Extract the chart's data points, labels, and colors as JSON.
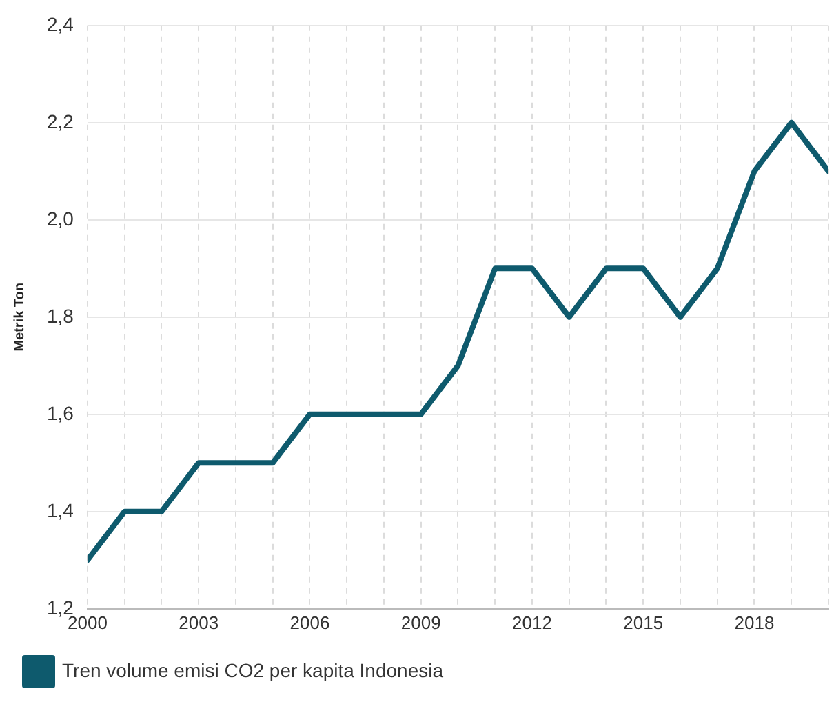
{
  "chart_data": {
    "type": "line",
    "ylabel": "Metrik Ton",
    "x": [
      2000,
      2001,
      2002,
      2003,
      2004,
      2005,
      2006,
      2007,
      2008,
      2009,
      2010,
      2011,
      2012,
      2013,
      2014,
      2015,
      2016,
      2017,
      2018,
      2019,
      2020
    ],
    "series": [
      {
        "name": "Tren volume emisi CO2 per kapita Indonesia",
        "color": "#0e5a6d",
        "values": [
          1.3,
          1.4,
          1.4,
          1.5,
          1.5,
          1.5,
          1.6,
          1.6,
          1.6,
          1.6,
          1.7,
          1.9,
          1.9,
          1.8,
          1.9,
          1.9,
          1.8,
          1.9,
          2.1,
          2.2,
          2.1
        ]
      }
    ],
    "xlim": [
      2000,
      2020
    ],
    "xticks": [
      2000,
      {
        "value": 2001,
        "label": null
      },
      {
        "value": 2002,
        "label": null
      },
      2003,
      {
        "value": 2004,
        "label": null
      },
      {
        "value": 2005,
        "label": null
      },
      2006,
      {
        "value": 2007,
        "label": null
      },
      {
        "value": 2008,
        "label": null
      },
      2009,
      {
        "value": 2010,
        "label": null
      },
      {
        "value": 2011,
        "label": null
      },
      2012,
      {
        "value": 2013,
        "label": null
      },
      {
        "value": 2014,
        "label": null
      },
      2015,
      {
        "value": 2016,
        "label": null
      },
      {
        "value": 2017,
        "label": null
      },
      2018,
      {
        "value": 2019,
        "label": null
      },
      {
        "value": 2020,
        "label": null
      }
    ],
    "ylim": [
      1.2,
      2.4
    ],
    "yticks": [
      {
        "value": 1.2,
        "label": "1,2"
      },
      {
        "value": 1.4,
        "label": "1,4"
      },
      {
        "value": 1.6,
        "label": "1,6"
      },
      {
        "value": 1.8,
        "label": "1,8"
      },
      {
        "value": 2.0,
        "label": "2,0"
      },
      {
        "value": 2.2,
        "label": "2,2"
      },
      {
        "value": 2.4,
        "label": "2,4"
      }
    ],
    "grid": true,
    "legend": "bottom left",
    "marker": "none",
    "line_style": "solid"
  }
}
